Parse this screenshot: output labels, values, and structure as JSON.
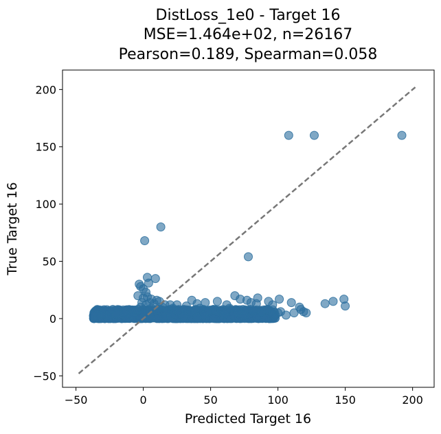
{
  "chart_data": {
    "type": "scatter",
    "title_lines": [
      "DistLoss_1e0 - Target 16",
      "MSE=1.464e+02, n=26167",
      "Pearson=0.189, Spearman=0.058"
    ],
    "xlabel": "Predicted Target 16",
    "ylabel": "True Target 16",
    "xlim": [
      -60,
      216
    ],
    "ylim": [
      -60,
      217
    ],
    "xticks": [
      -50,
      0,
      50,
      100,
      150,
      200
    ],
    "yticks": [
      -50,
      0,
      50,
      100,
      150,
      200
    ],
    "grid": false,
    "point_color": "#2c6e9e",
    "reference_line": {
      "x": [
        -48,
        202
      ],
      "y": [
        -48,
        202
      ],
      "color": "#777777",
      "style": "dashed"
    },
    "band_summary": {
      "x_range": [
        -37,
        98
      ],
      "y_range": [
        0,
        8
      ]
    },
    "series": [
      {
        "points": [
          [
            108,
            160
          ],
          [
            127,
            160
          ],
          [
            192,
            160
          ],
          [
            1,
            68
          ],
          [
            13,
            80
          ],
          [
            78,
            54
          ],
          [
            3,
            36
          ],
          [
            4,
            31
          ],
          [
            9,
            35
          ],
          [
            -3,
            30
          ],
          [
            -2,
            28
          ],
          [
            0,
            26
          ],
          [
            2,
            23
          ],
          [
            -4,
            20
          ],
          [
            0,
            18
          ],
          [
            3,
            19
          ],
          [
            6,
            17
          ],
          [
            10,
            16
          ],
          [
            12,
            15
          ],
          [
            -1,
            14
          ],
          [
            5,
            14
          ],
          [
            8,
            13
          ],
          [
            16,
            12
          ],
          [
            20,
            12
          ],
          [
            25,
            12
          ],
          [
            32,
            11
          ],
          [
            36,
            16
          ],
          [
            40,
            13
          ],
          [
            46,
            14
          ],
          [
            55,
            15
          ],
          [
            62,
            12
          ],
          [
            68,
            20
          ],
          [
            72,
            17
          ],
          [
            77,
            16
          ],
          [
            80,
            14
          ],
          [
            85,
            18
          ],
          [
            84,
            13
          ],
          [
            93,
            15
          ],
          [
            96,
            12
          ],
          [
            101,
            17
          ],
          [
            110,
            14
          ],
          [
            116,
            10
          ],
          [
            117,
            8
          ],
          [
            119,
            6
          ],
          [
            121,
            5
          ],
          [
            135,
            13
          ],
          [
            141,
            15
          ],
          [
            149,
            17
          ],
          [
            150,
            11
          ],
          [
            -34,
            3
          ],
          [
            -30,
            4
          ],
          [
            -26,
            3
          ],
          [
            -20,
            4
          ],
          [
            -14,
            5
          ],
          [
            -10,
            4
          ],
          [
            -6,
            6
          ],
          [
            -4,
            8
          ],
          [
            -2,
            10
          ],
          [
            0,
            6
          ],
          [
            2,
            12
          ],
          [
            4,
            7
          ],
          [
            6,
            9
          ],
          [
            10,
            8
          ],
          [
            14,
            10
          ],
          [
            18,
            6
          ],
          [
            22,
            9
          ],
          [
            26,
            7
          ],
          [
            30,
            8
          ],
          [
            34,
            5
          ],
          [
            38,
            7
          ],
          [
            42,
            9
          ],
          [
            48,
            6
          ],
          [
            52,
            8
          ],
          [
            58,
            7
          ],
          [
            64,
            9
          ],
          [
            70,
            6
          ],
          [
            74,
            8
          ],
          [
            82,
            7
          ],
          [
            88,
            6
          ],
          [
            92,
            8
          ],
          [
            96,
            4
          ],
          [
            102,
            6
          ],
          [
            106,
            3
          ],
          [
            112,
            5
          ],
          [
            100,
            5
          ],
          [
            98,
            3
          ],
          [
            60,
            4
          ],
          [
            45,
            3
          ],
          [
            30,
            2
          ],
          [
            15,
            1
          ],
          [
            5,
            0
          ],
          [
            -8,
            2
          ],
          [
            20,
            3
          ],
          [
            40,
            1
          ],
          [
            75,
            3
          ]
        ]
      }
    ]
  }
}
